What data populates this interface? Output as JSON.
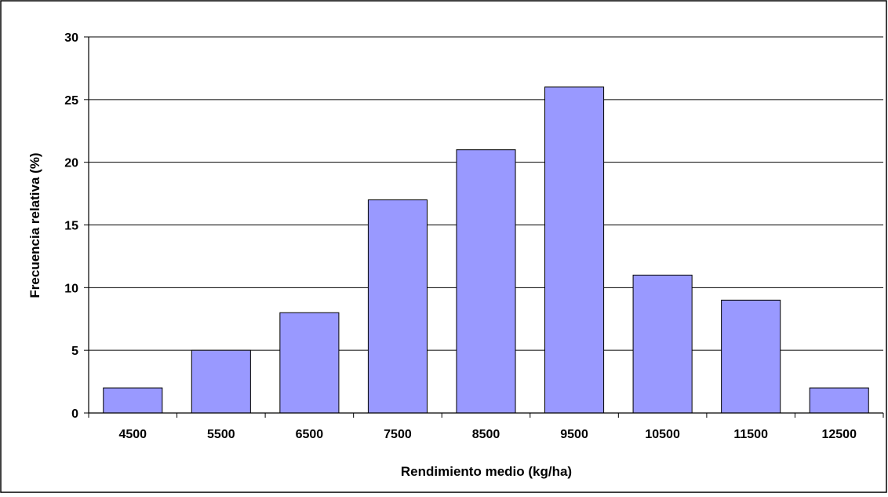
{
  "chart_data": {
    "type": "bar",
    "title": "",
    "xlabel": "Rendimiento medio (kg/ha)",
    "ylabel": "Frecuencia relativa (%)",
    "categories": [
      "4500",
      "5500",
      "6500",
      "7500",
      "8500",
      "9500",
      "10500",
      "11500",
      "12500"
    ],
    "values": [
      2,
      5,
      8,
      17,
      21,
      26,
      11,
      9,
      2
    ],
    "ylim": [
      0,
      30
    ],
    "yticks": [
      0,
      5,
      10,
      15,
      20,
      25,
      30
    ],
    "grid": "horizontal",
    "legend": "none",
    "colors": {
      "bar_fill": "#9999ff",
      "bar_stroke": "#000000",
      "grid": "#000000",
      "axis": "#000000",
      "frame": "#000000",
      "text": "#000000"
    }
  }
}
